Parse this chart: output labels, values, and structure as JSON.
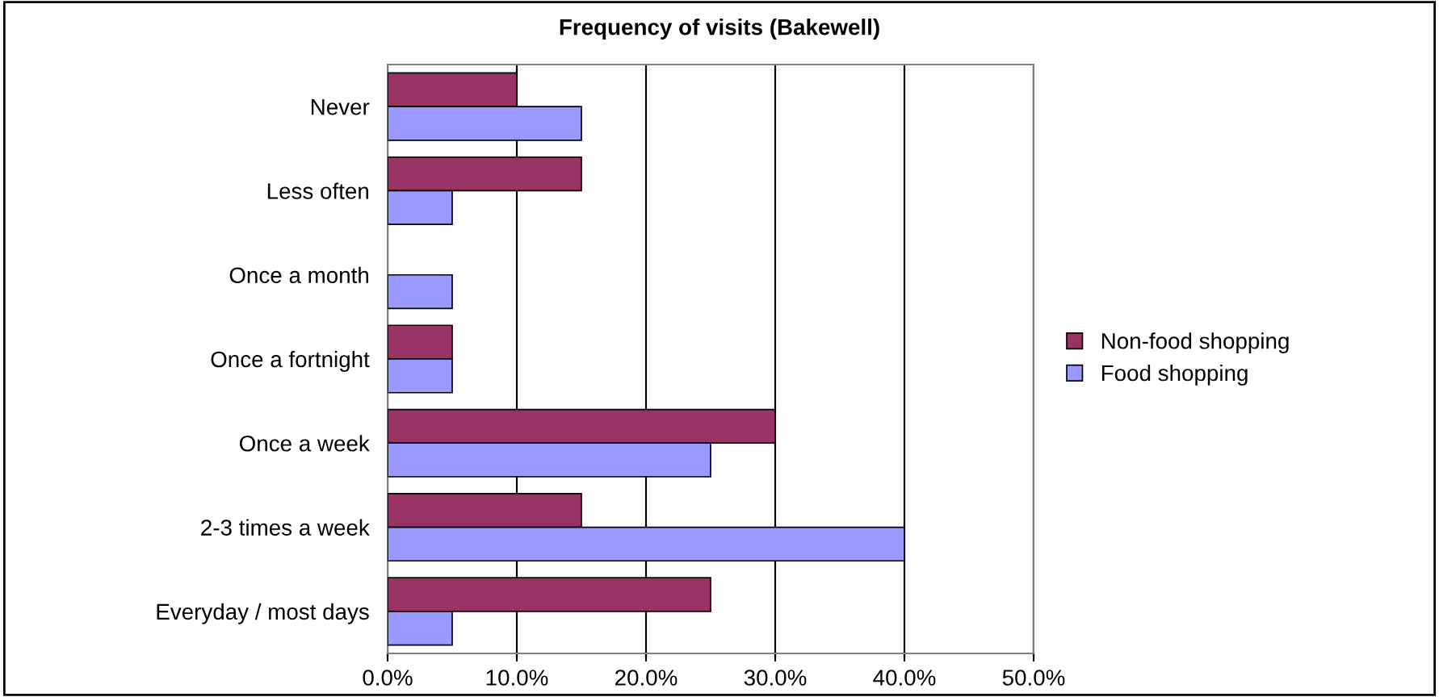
{
  "chart_data": {
    "type": "bar",
    "orientation": "horizontal",
    "title": "Frequency of visits (Bakewell)",
    "categories": [
      "Never",
      "Less often",
      "Once a month",
      "Once a fortnight",
      "Once a week",
      "2-3 times a week",
      "Everyday / most days"
    ],
    "series": [
      {
        "name": "Non-food shopping",
        "color": "#993366",
        "values": [
          10,
          15,
          0,
          5,
          30,
          15,
          25
        ]
      },
      {
        "name": "Food shopping",
        "color": "#9999ff",
        "values": [
          15,
          5,
          5,
          5,
          25,
          40,
          5
        ]
      }
    ],
    "xlim": [
      0,
      50
    ],
    "xticks": [
      {
        "value": 0,
        "label": "0.0%"
      },
      {
        "value": 10,
        "label": "10.0%"
      },
      {
        "value": 20,
        "label": "20.0%"
      },
      {
        "value": 30,
        "label": "30.0%"
      },
      {
        "value": 40,
        "label": "40.0%"
      },
      {
        "value": 50,
        "label": "50.0%"
      }
    ],
    "grid": "x",
    "legend": "right"
  }
}
